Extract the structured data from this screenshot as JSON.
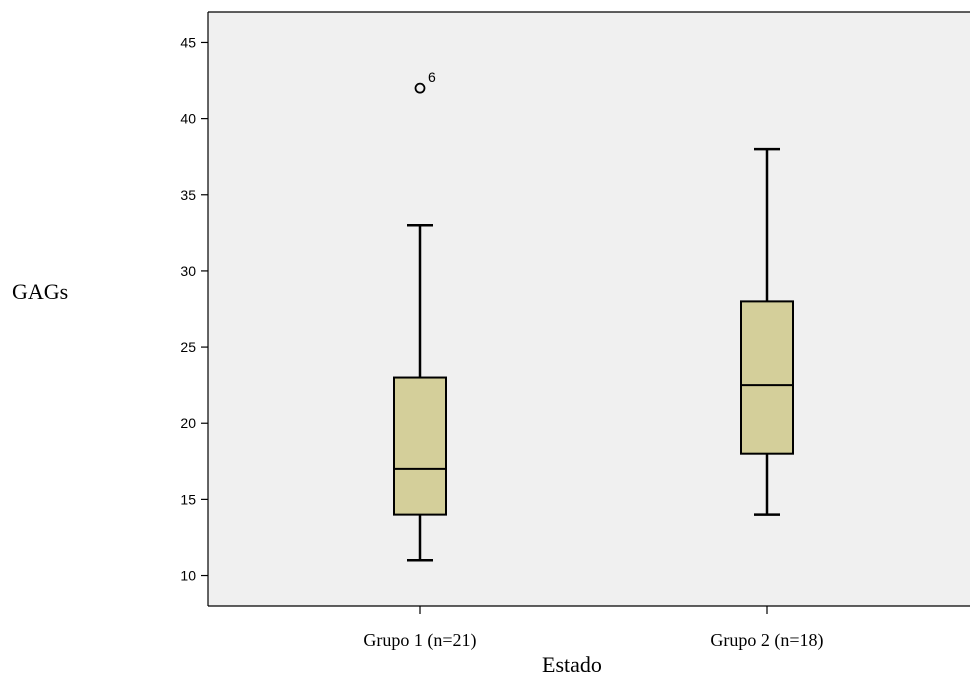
{
  "chart_data": {
    "type": "box",
    "xlabel": "Estado",
    "ylabel": "GAGs",
    "ylim": [
      8,
      47
    ],
    "yticks": [
      10,
      15,
      20,
      25,
      30,
      35,
      40,
      45
    ],
    "categories": [
      "Grupo 1 (n=21)",
      "Grupo 2 (n=18)"
    ],
    "boxes": [
      {
        "category": "Grupo 1 (n=21)",
        "whisker_low": 11,
        "q1": 14,
        "median": 17,
        "q3": 23,
        "whisker_high": 33,
        "outliers": [
          {
            "value": 42,
            "label": "6"
          }
        ]
      },
      {
        "category": "Grupo 2 (n=18)",
        "whisker_low": 14,
        "q1": 18,
        "median": 22.5,
        "q3": 28,
        "whisker_high": 38,
        "outliers": []
      }
    ],
    "colors": {
      "box_fill": "#d4cf9a",
      "plot_bg": "#f0f0f0",
      "stroke": "#000000"
    }
  }
}
